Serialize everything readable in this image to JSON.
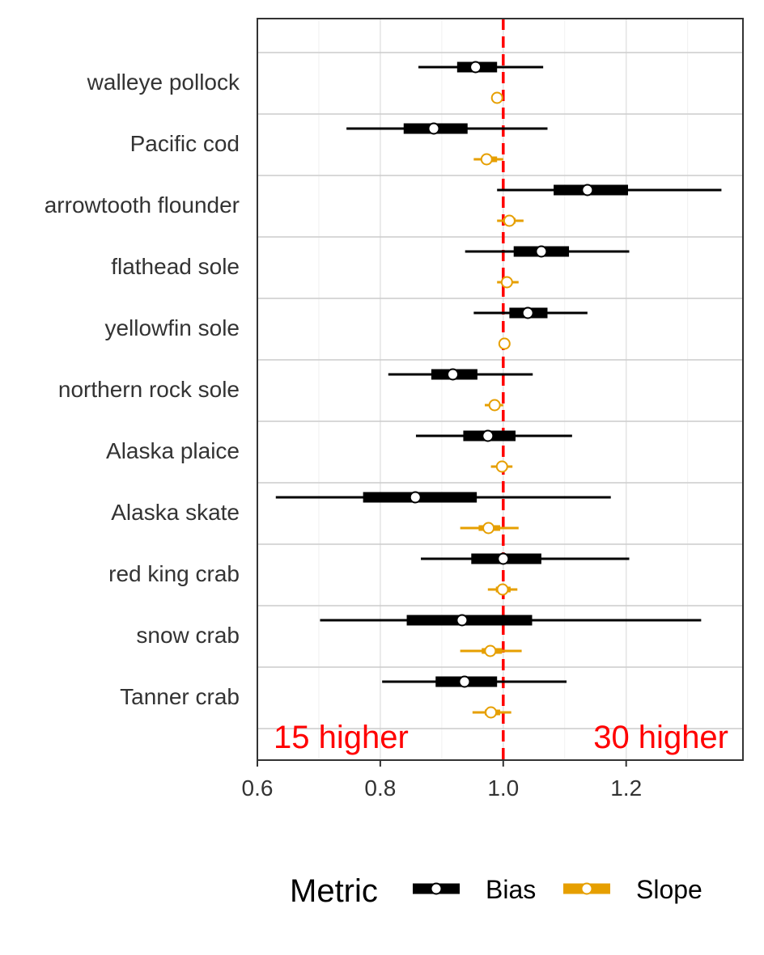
{
  "chart_data": {
    "type": "forest",
    "xlim": [
      0.6,
      1.39
    ],
    "xticks": [
      "0.6",
      "0.8",
      "1.0",
      "1.2"
    ],
    "reference_line": 1.0,
    "grid": true,
    "legend_position": "bottom",
    "categories": [
      "walleye pollock",
      "Pacific cod",
      "arrowtooth flounder",
      "flathead sole",
      "yellowfin sole",
      "northern rock sole",
      "Alaska plaice",
      "Alaska skate",
      "red king crab",
      "snow crab",
      "Tanner crab"
    ],
    "series": [
      {
        "name": "Bias",
        "color": "#000000",
        "points": [
          {
            "est": 0.955,
            "lo50": 0.925,
            "hi50": 0.99,
            "lo95": 0.862,
            "hi95": 1.065
          },
          {
            "est": 0.887,
            "lo50": 0.838,
            "hi50": 0.942,
            "lo95": 0.745,
            "hi95": 1.072
          },
          {
            "est": 1.137,
            "lo50": 1.082,
            "hi50": 1.203,
            "lo95": 0.99,
            "hi95": 1.355
          },
          {
            "est": 1.062,
            "lo50": 1.017,
            "hi50": 1.107,
            "lo95": 0.938,
            "hi95": 1.205
          },
          {
            "est": 1.04,
            "lo50": 1.01,
            "hi50": 1.072,
            "lo95": 0.952,
            "hi95": 1.137
          },
          {
            "est": 0.918,
            "lo50": 0.883,
            "hi50": 0.958,
            "lo95": 0.813,
            "hi95": 1.048
          },
          {
            "est": 0.975,
            "lo50": 0.935,
            "hi50": 1.02,
            "lo95": 0.858,
            "hi95": 1.112
          },
          {
            "est": 0.857,
            "lo50": 0.772,
            "hi50": 0.957,
            "lo95": 0.63,
            "hi95": 1.175
          },
          {
            "est": 1.0,
            "lo50": 0.948,
            "hi50": 1.062,
            "lo95": 0.866,
            "hi95": 1.205
          },
          {
            "est": 0.933,
            "lo50": 0.843,
            "hi50": 1.047,
            "lo95": 0.702,
            "hi95": 1.322
          },
          {
            "est": 0.937,
            "lo50": 0.89,
            "hi50": 0.99,
            "lo95": 0.803,
            "hi95": 1.103
          }
        ]
      },
      {
        "name": "Slope",
        "color": "#E69F00",
        "points": [
          {
            "est": 0.99,
            "lo50": 0.988,
            "hi50": 0.992,
            "lo95": 0.985,
            "hi95": 0.997
          },
          {
            "est": 0.973,
            "lo50": 0.965,
            "hi50": 0.99,
            "lo95": 0.952,
            "hi95": 1.0
          },
          {
            "est": 1.01,
            "lo50": 1.0,
            "hi50": 1.02,
            "lo95": 0.99,
            "hi95": 1.033
          },
          {
            "est": 1.006,
            "lo50": 0.998,
            "hi50": 1.012,
            "lo95": 0.99,
            "hi95": 1.025
          },
          {
            "est": 1.002,
            "lo50": 1.0,
            "hi50": 1.004,
            "lo95": 0.998,
            "hi95": 1.006
          },
          {
            "est": 0.986,
            "lo50": 0.98,
            "hi50": 0.993,
            "lo95": 0.97,
            "hi95": 1.0
          },
          {
            "est": 0.998,
            "lo50": 0.99,
            "hi50": 1.007,
            "lo95": 0.98,
            "hi95": 1.015
          },
          {
            "est": 0.976,
            "lo50": 0.96,
            "hi50": 0.995,
            "lo95": 0.93,
            "hi95": 1.025
          },
          {
            "est": 0.999,
            "lo50": 0.988,
            "hi50": 1.012,
            "lo95": 0.975,
            "hi95": 1.023
          },
          {
            "est": 0.979,
            "lo50": 0.965,
            "hi50": 0.998,
            "lo95": 0.93,
            "hi95": 1.03
          },
          {
            "est": 0.98,
            "lo50": 0.97,
            "hi50": 0.995,
            "lo95": 0.95,
            "hi95": 1.013
          }
        ]
      }
    ],
    "annotations": {
      "left": "15 higher",
      "right": "30 higher",
      "color": "#FF0000"
    },
    "legend_title": "Metric"
  }
}
